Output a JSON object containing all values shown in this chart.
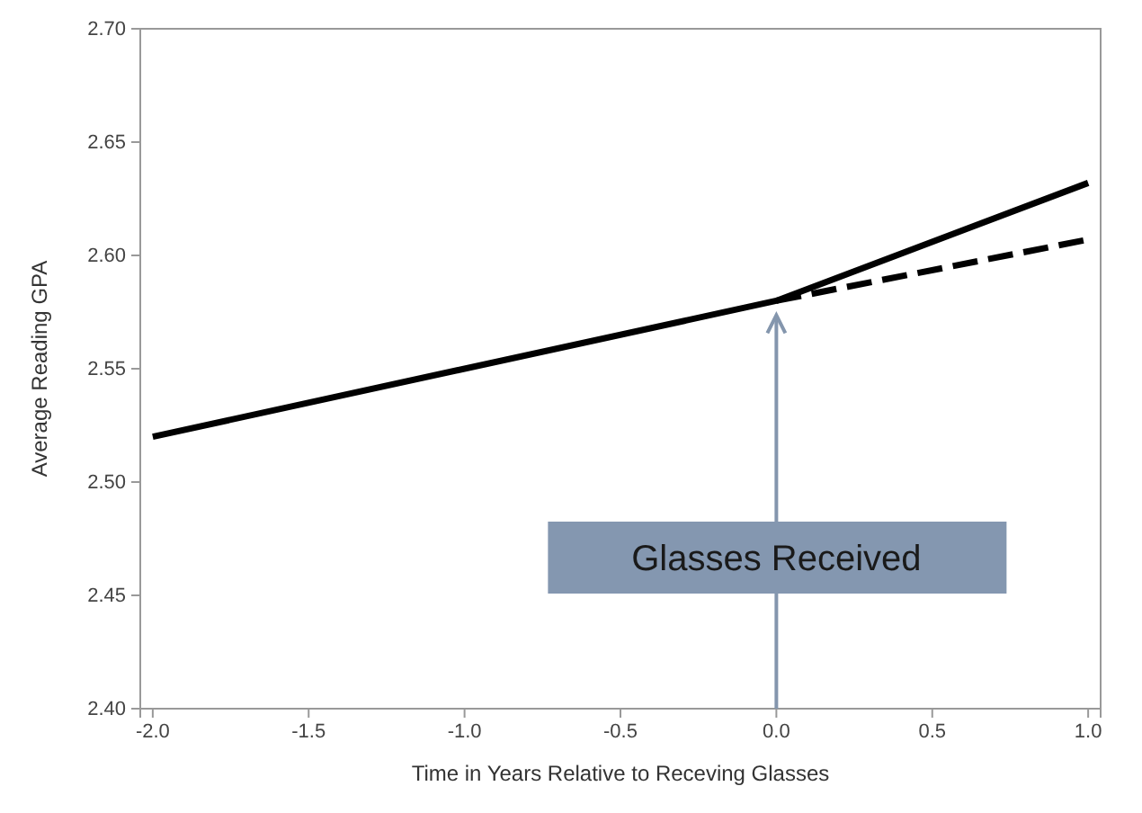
{
  "chart_data": {
    "type": "line",
    "xlabel": "Time in Years Relative to Receving Glasses",
    "ylabel": "Average Reading GPA",
    "xlim": [
      -2.04,
      1.04
    ],
    "xticks": [
      {
        "value": -2,
        "label": "-2.0"
      },
      {
        "value": -1.5,
        "label": "-1.5"
      },
      {
        "value": -1,
        "label": "-1.0"
      },
      {
        "value": -0.5,
        "label": "-0.5"
      },
      {
        "value": 0,
        "label": "0.0"
      },
      {
        "value": 0.5,
        "label": "0.5"
      },
      {
        "value": 1,
        "label": "1.0"
      }
    ],
    "ylim": [
      2.4,
      2.7
    ],
    "yticks": [
      {
        "value": 2.4,
        "label": "2.40"
      },
      {
        "value": 2.45,
        "label": "2.45"
      },
      {
        "value": 2.5,
        "label": "2.50"
      },
      {
        "value": 2.55,
        "label": "2.55"
      },
      {
        "value": 2.6,
        "label": "2.60"
      },
      {
        "value": 2.65,
        "label": "2.65"
      },
      {
        "value": 2.7,
        "label": "2.70"
      }
    ],
    "grid": false,
    "marker": "none",
    "series": [
      {
        "color": "#000000",
        "line_style": "solid",
        "x": [
          -2,
          0,
          1
        ],
        "values": [
          2.52,
          2.58,
          2.632
        ]
      },
      {
        "color": "#000000",
        "line_style": "dashed",
        "x": [
          0,
          1
        ],
        "values": [
          2.58,
          2.607
        ]
      }
    ],
    "annotations": [
      "Glasses Received"
    ]
  }
}
